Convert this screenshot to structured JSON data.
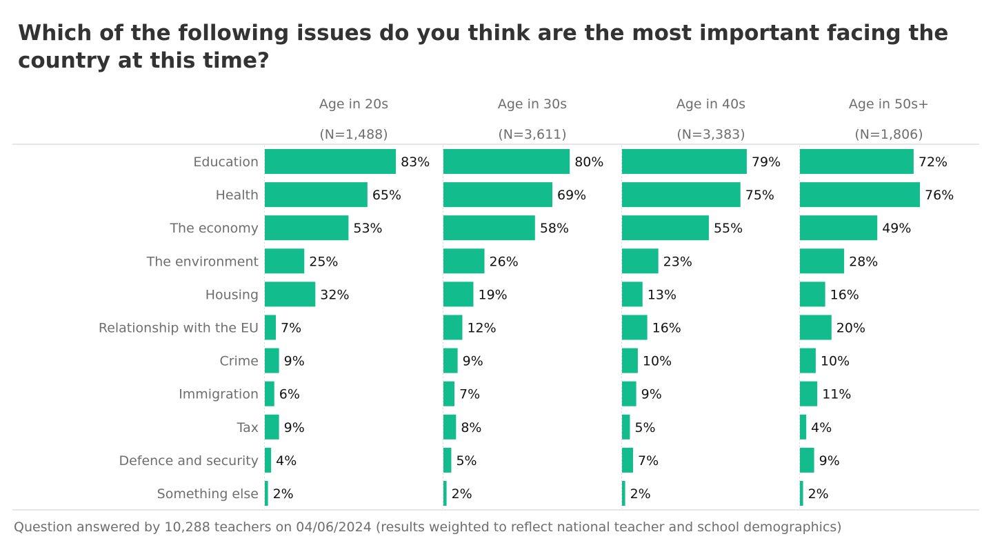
{
  "chart_data": {
    "type": "bar",
    "orientation": "horizontal",
    "title": "Which of the following issues do you think are the most important facing the country at this time?",
    "categories": [
      "Education",
      "Health",
      "The economy",
      "The environment",
      "Housing",
      "Relationship with the EU",
      "Crime",
      "Immigration",
      "Tax",
      "Defence and security",
      "Something else"
    ],
    "series": [
      {
        "name": "Age in 20s",
        "n_label": "(N=1,488)",
        "values": [
          83,
          65,
          53,
          25,
          32,
          7,
          9,
          6,
          9,
          4,
          2
        ]
      },
      {
        "name": "Age in 30s",
        "n_label": "(N=3,611)",
        "values": [
          80,
          69,
          58,
          26,
          19,
          12,
          9,
          7,
          8,
          5,
          2
        ]
      },
      {
        "name": "Age in 40s",
        "n_label": "(N=3,383)",
        "values": [
          79,
          75,
          55,
          23,
          13,
          16,
          10,
          9,
          5,
          7,
          2
        ]
      },
      {
        "name": "Age in 50s+",
        "n_label": "(N=1,806)",
        "values": [
          72,
          76,
          49,
          28,
          16,
          20,
          10,
          11,
          4,
          9,
          2
        ]
      }
    ],
    "value_suffix": "%",
    "xlim": [
      0,
      100
    ],
    "bar_color": "#12bc8c",
    "footnote": "Question answered by 10,288 teachers on 04/06/2024 (results weighted to reflect national teacher and school demographics)"
  }
}
